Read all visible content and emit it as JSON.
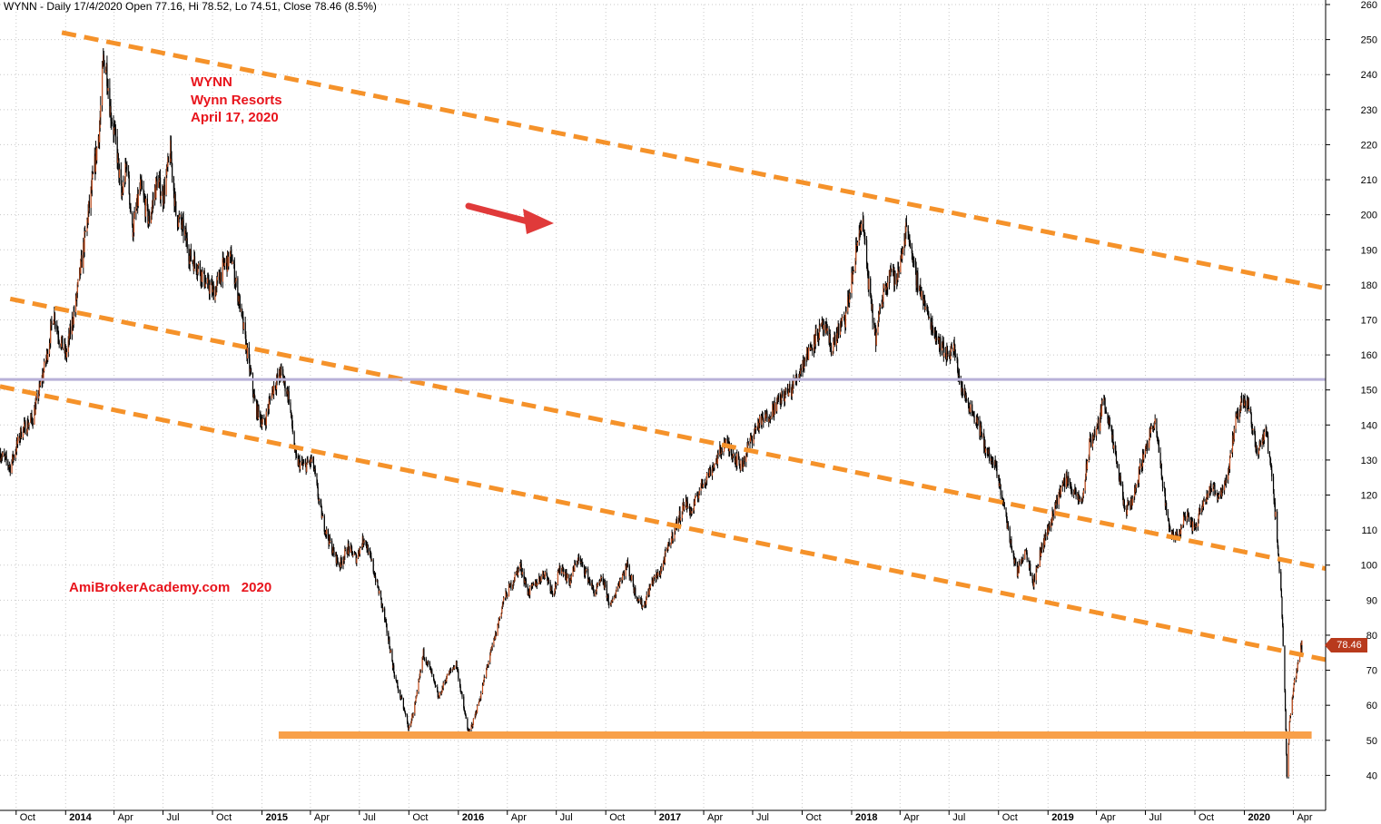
{
  "header": {
    "text": "WYNN - Daily 17/4/2020 Open 77.16, Hi 78.52, Lo 74.51, Close 78.46 (8.5%)"
  },
  "annotation": {
    "ticker": "WYNN",
    "company": "Wynn Resorts",
    "date": "April 17, 2020",
    "watermark": "AmiBrokerAcademy.com   2020"
  },
  "last_price": {
    "label": "78.46",
    "value": 78.46
  },
  "colors": {
    "candles": "#000000",
    "trendlines": "#f5922a",
    "support": "#f8a04a",
    "resistance_line": "#b8b0d8",
    "annotation": "#e8141c",
    "grid": "#c8c8c8",
    "price_tag": "#b83a1c",
    "arrow": "#e03a3a"
  },
  "chart_data": {
    "type": "candlestick",
    "symbol": "WYNN",
    "title": "WYNN - Daily 17/4/2020 Open 77.16, Hi 78.52, Lo 74.51, Close 78.46 (8.5%)",
    "ylim": [
      30,
      260
    ],
    "y_ticks": [
      40,
      50,
      60,
      70,
      80,
      90,
      100,
      110,
      120,
      130,
      140,
      150,
      160,
      170,
      180,
      190,
      200,
      210,
      220,
      230,
      240,
      250,
      260
    ],
    "x_range": [
      "2013-09-01",
      "2020-05-31"
    ],
    "x_ticks": [
      {
        "date": "2013-10-01",
        "label": "Oct"
      },
      {
        "date": "2014-01-01",
        "label": "2014"
      },
      {
        "date": "2014-04-01",
        "label": "Apr"
      },
      {
        "date": "2014-07-01",
        "label": "Jul"
      },
      {
        "date": "2014-10-01",
        "label": "Oct"
      },
      {
        "date": "2015-01-01",
        "label": "2015"
      },
      {
        "date": "2015-04-01",
        "label": "Apr"
      },
      {
        "date": "2015-07-01",
        "label": "Jul"
      },
      {
        "date": "2015-10-01",
        "label": "Oct"
      },
      {
        "date": "2016-01-01",
        "label": "2016"
      },
      {
        "date": "2016-04-01",
        "label": "Apr"
      },
      {
        "date": "2016-07-01",
        "label": "Jul"
      },
      {
        "date": "2016-10-01",
        "label": "Oct"
      },
      {
        "date": "2017-01-01",
        "label": "2017"
      },
      {
        "date": "2017-04-01",
        "label": "Apr"
      },
      {
        "date": "2017-07-01",
        "label": "Jul"
      },
      {
        "date": "2017-10-01",
        "label": "Oct"
      },
      {
        "date": "2018-01-01",
        "label": "2018"
      },
      {
        "date": "2018-04-01",
        "label": "Apr"
      },
      {
        "date": "2018-07-01",
        "label": "Jul"
      },
      {
        "date": "2018-10-01",
        "label": "Oct"
      },
      {
        "date": "2019-01-01",
        "label": "2019"
      },
      {
        "date": "2019-04-01",
        "label": "Apr"
      },
      {
        "date": "2019-07-01",
        "label": "Jul"
      },
      {
        "date": "2019-10-01",
        "label": "Oct"
      },
      {
        "date": "2020-01-01",
        "label": "2020"
      },
      {
        "date": "2020-04-01",
        "label": "Apr"
      }
    ],
    "close_path": [
      [
        "2013-09-01",
        132
      ],
      [
        "2013-09-20",
        128
      ],
      [
        "2013-10-10",
        138
      ],
      [
        "2013-11-01",
        142
      ],
      [
        "2013-11-25",
        158
      ],
      [
        "2013-12-10",
        172
      ],
      [
        "2013-12-20",
        165
      ],
      [
        "2014-01-02",
        160
      ],
      [
        "2014-01-20",
        175
      ],
      [
        "2014-02-10",
        198
      ],
      [
        "2014-02-25",
        215
      ],
      [
        "2014-03-05",
        225
      ],
      [
        "2014-03-12",
        244
      ],
      [
        "2014-03-18",
        242
      ],
      [
        "2014-03-25",
        230
      ],
      [
        "2014-04-05",
        220
      ],
      [
        "2014-04-15",
        205
      ],
      [
        "2014-04-25",
        215
      ],
      [
        "2014-05-05",
        195
      ],
      [
        "2014-05-20",
        208
      ],
      [
        "2014-06-05",
        198
      ],
      [
        "2014-06-20",
        210
      ],
      [
        "2014-07-01",
        205
      ],
      [
        "2014-07-15",
        218
      ],
      [
        "2014-07-25",
        200
      ],
      [
        "2014-08-10",
        195
      ],
      [
        "2014-08-20",
        188
      ],
      [
        "2014-09-05",
        185
      ],
      [
        "2014-09-20",
        180
      ],
      [
        "2014-10-05",
        178
      ],
      [
        "2014-10-20",
        185
      ],
      [
        "2014-11-05",
        188
      ],
      [
        "2014-11-20",
        175
      ],
      [
        "2014-12-05",
        160
      ],
      [
        "2014-12-20",
        145
      ],
      [
        "2015-01-05",
        140
      ],
      [
        "2015-01-20",
        150
      ],
      [
        "2015-02-05",
        155
      ],
      [
        "2015-02-20",
        148
      ],
      [
        "2015-03-05",
        130
      ],
      [
        "2015-03-20",
        128
      ],
      [
        "2015-04-05",
        130
      ],
      [
        "2015-04-15",
        120
      ],
      [
        "2015-04-25",
        112
      ],
      [
        "2015-05-10",
        105
      ],
      [
        "2015-05-25",
        100
      ],
      [
        "2015-06-10",
        105
      ],
      [
        "2015-06-25",
        102
      ],
      [
        "2015-07-10",
        108
      ],
      [
        "2015-07-25",
        100
      ],
      [
        "2015-08-10",
        90
      ],
      [
        "2015-08-25",
        78
      ],
      [
        "2015-09-05",
        68
      ],
      [
        "2015-09-20",
        60
      ],
      [
        "2015-10-01",
        53
      ],
      [
        "2015-10-15",
        62
      ],
      [
        "2015-10-28",
        75
      ],
      [
        "2015-11-10",
        70
      ],
      [
        "2015-11-25",
        62
      ],
      [
        "2015-12-10",
        68
      ],
      [
        "2015-12-28",
        72
      ],
      [
        "2016-01-10",
        60
      ],
      [
        "2016-01-20",
        52
      ],
      [
        "2016-01-28",
        55
      ],
      [
        "2016-02-10",
        62
      ],
      [
        "2016-02-25",
        72
      ],
      [
        "2016-03-10",
        80
      ],
      [
        "2016-03-25",
        90
      ],
      [
        "2016-04-10",
        95
      ],
      [
        "2016-04-25",
        100
      ],
      [
        "2016-05-10",
        92
      ],
      [
        "2016-05-25",
        95
      ],
      [
        "2016-06-10",
        98
      ],
      [
        "2016-06-25",
        92
      ],
      [
        "2016-07-10",
        100
      ],
      [
        "2016-07-25",
        95
      ],
      [
        "2016-08-10",
        102
      ],
      [
        "2016-08-25",
        98
      ],
      [
        "2016-09-10",
        92
      ],
      [
        "2016-09-25",
        96
      ],
      [
        "2016-10-10",
        88
      ],
      [
        "2016-10-25",
        95
      ],
      [
        "2016-11-10",
        100
      ],
      [
        "2016-11-25",
        92
      ],
      [
        "2016-12-10",
        88
      ],
      [
        "2016-12-25",
        95
      ],
      [
        "2017-01-10",
        98
      ],
      [
        "2017-01-25",
        105
      ],
      [
        "2017-02-10",
        112
      ],
      [
        "2017-02-25",
        118
      ],
      [
        "2017-03-10",
        115
      ],
      [
        "2017-03-25",
        122
      ],
      [
        "2017-04-10",
        126
      ],
      [
        "2017-04-25",
        130
      ],
      [
        "2017-05-10",
        135
      ],
      [
        "2017-05-25",
        132
      ],
      [
        "2017-06-10",
        128
      ],
      [
        "2017-06-25",
        135
      ],
      [
        "2017-07-10",
        140
      ],
      [
        "2017-07-25",
        142
      ],
      [
        "2017-08-10",
        145
      ],
      [
        "2017-08-25",
        148
      ],
      [
        "2017-09-10",
        150
      ],
      [
        "2017-09-25",
        155
      ],
      [
        "2017-10-10",
        160
      ],
      [
        "2017-10-25",
        165
      ],
      [
        "2017-11-10",
        168
      ],
      [
        "2017-11-25",
        162
      ],
      [
        "2017-12-10",
        168
      ],
      [
        "2017-12-20",
        170
      ],
      [
        "2018-01-05",
        185
      ],
      [
        "2018-01-20",
        200
      ],
      [
        "2018-02-05",
        175
      ],
      [
        "2018-02-15",
        165
      ],
      [
        "2018-03-01",
        178
      ],
      [
        "2018-03-15",
        185
      ],
      [
        "2018-03-25",
        180
      ],
      [
        "2018-04-05",
        190
      ],
      [
        "2018-04-15",
        198
      ],
      [
        "2018-04-25",
        185
      ],
      [
        "2018-05-10",
        178
      ],
      [
        "2018-05-25",
        170
      ],
      [
        "2018-06-10",
        165
      ],
      [
        "2018-06-25",
        160
      ],
      [
        "2018-07-10",
        162
      ],
      [
        "2018-07-25",
        150
      ],
      [
        "2018-08-10",
        145
      ],
      [
        "2018-08-25",
        140
      ],
      [
        "2018-09-10",
        132
      ],
      [
        "2018-09-25",
        128
      ],
      [
        "2018-10-10",
        118
      ],
      [
        "2018-10-25",
        105
      ],
      [
        "2018-11-05",
        98
      ],
      [
        "2018-11-20",
        105
      ],
      [
        "2018-12-05",
        95
      ],
      [
        "2018-12-20",
        105
      ],
      [
        "2019-01-05",
        112
      ],
      [
        "2019-01-20",
        120
      ],
      [
        "2019-02-05",
        125
      ],
      [
        "2019-02-20",
        120
      ],
      [
        "2019-03-05",
        118
      ],
      [
        "2019-03-20",
        135
      ],
      [
        "2019-04-05",
        140
      ],
      [
        "2019-04-15",
        148
      ],
      [
        "2019-04-25",
        140
      ],
      [
        "2019-05-10",
        128
      ],
      [
        "2019-05-25",
        115
      ],
      [
        "2019-06-10",
        120
      ],
      [
        "2019-06-25",
        130
      ],
      [
        "2019-07-10",
        138
      ],
      [
        "2019-07-20",
        140
      ],
      [
        "2019-08-01",
        125
      ],
      [
        "2019-08-15",
        110
      ],
      [
        "2019-08-30",
        108
      ],
      [
        "2019-09-15",
        115
      ],
      [
        "2019-09-30",
        110
      ],
      [
        "2019-10-15",
        118
      ],
      [
        "2019-10-30",
        122
      ],
      [
        "2019-11-15",
        120
      ],
      [
        "2019-11-30",
        125
      ],
      [
        "2019-12-15",
        140
      ],
      [
        "2019-12-30",
        148
      ],
      [
        "2020-01-10",
        145
      ],
      [
        "2020-01-25",
        132
      ],
      [
        "2020-02-10",
        138
      ],
      [
        "2020-02-20",
        128
      ],
      [
        "2020-03-01",
        110
      ],
      [
        "2020-03-10",
        90
      ],
      [
        "2020-03-16",
        65
      ],
      [
        "2020-03-20",
        40
      ],
      [
        "2020-03-25",
        55
      ],
      [
        "2020-04-01",
        65
      ],
      [
        "2020-04-08",
        70
      ],
      [
        "2020-04-17",
        78.46
      ]
    ],
    "overlays": [
      {
        "kind": "trendline",
        "style": "dashed",
        "from": [
          "2013-12-25",
          252
        ],
        "to": [
          "2020-05-31",
          179
        ]
      },
      {
        "kind": "trendline",
        "style": "dashed",
        "from": [
          "2013-09-20",
          176
        ],
        "to": [
          "2020-05-31",
          99
        ]
      },
      {
        "kind": "trendline",
        "style": "dashed",
        "from": [
          "2013-09-01",
          151
        ],
        "to": [
          "2020-05-31",
          73
        ]
      },
      {
        "kind": "horizontal",
        "style": "solid",
        "value": 153,
        "from": "2013-09-01",
        "to": "2020-05-31"
      },
      {
        "kind": "horizontal",
        "style": "thick",
        "value": 51.5,
        "from": "2015-02-01",
        "to": "2020-05-05"
      }
    ]
  }
}
